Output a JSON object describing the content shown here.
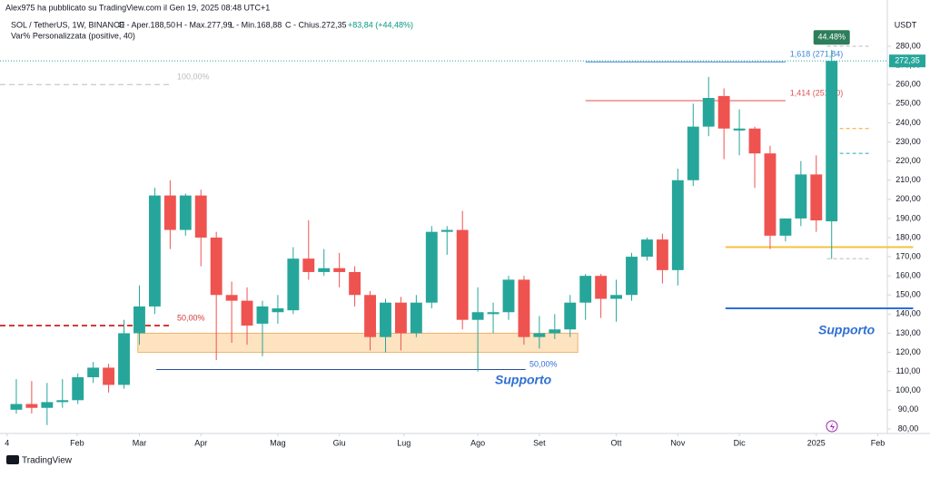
{
  "header": {
    "publisher": "Alex975 ha pubblicato su TradingView.com il Gen 19, 2025 08:48 UTC+1",
    "symbol": "SOL / TetherUS, 1W, BINANCE",
    "ohlc": [
      "O - Aper.188,50",
      "H - Max.277,99",
      "L - Min.168,88",
      "C - Chius.272,35"
    ],
    "change": "+83,84 (+44,48%)",
    "indicator": "Var% Personalizzata (positive, 40)"
  },
  "chart_data": {
    "type": "candlestick",
    "currency": "USDT",
    "up_color": "#26a69a",
    "down_color": "#ef5350",
    "categories": [
      null,
      null,
      null,
      null,
      null,
      null,
      null,
      null,
      null,
      null,
      null,
      null,
      null,
      null,
      null,
      null,
      null,
      null,
      null,
      null,
      null,
      null,
      null,
      null,
      null,
      null,
      null,
      null,
      null,
      null,
      null,
      null,
      null,
      null,
      null,
      null,
      null,
      null,
      null,
      null,
      null,
      null,
      null,
      null,
      null,
      null,
      null,
      null,
      null,
      null,
      null,
      null,
      null,
      null
    ],
    "open": [
      90,
      93,
      91,
      94,
      95,
      107,
      112,
      103,
      130,
      144,
      202,
      184,
      202,
      180,
      150,
      147,
      135,
      141,
      142,
      169,
      162,
      164,
      162,
      150,
      128,
      146,
      130,
      146,
      183,
      184,
      137,
      140,
      141,
      158,
      128,
      130,
      132,
      146,
      160,
      148,
      150,
      170,
      179,
      163,
      210,
      238,
      254,
      236,
      237,
      224,
      181,
      190,
      213,
      188.5
    ],
    "high": [
      106,
      105,
      104,
      106,
      109,
      115,
      114,
      137,
      155,
      206,
      210,
      203,
      205,
      183,
      157,
      154,
      147,
      150,
      175,
      189,
      174,
      172,
      165,
      152,
      148,
      149,
      150,
      186,
      186,
      194,
      154,
      146,
      160,
      160,
      139,
      140,
      150,
      161,
      161,
      158,
      172,
      180,
      182,
      216,
      250,
      264,
      258,
      247,
      238,
      228,
      190,
      220,
      223,
      277.99
    ],
    "low": [
      88,
      88,
      82,
      91,
      93,
      104,
      99,
      101,
      124,
      140,
      174,
      181,
      165,
      116,
      125,
      124,
      118,
      135,
      140,
      158,
      160,
      154,
      144,
      121,
      120,
      121,
      128,
      143,
      171,
      132,
      110,
      130,
      137,
      124,
      122,
      127,
      128,
      137,
      138,
      136,
      147,
      168,
      156,
      155,
      207,
      233,
      221,
      223,
      206,
      174,
      178,
      186,
      183,
      168.88
    ],
    "close": [
      93,
      91,
      94,
      95,
      107,
      112,
      103,
      130,
      144,
      202,
      184,
      202,
      180,
      150,
      147,
      134,
      144,
      143,
      169,
      162,
      164,
      162,
      150,
      128,
      146,
      130,
      146,
      183,
      184,
      137,
      141,
      141,
      158,
      128,
      130,
      132,
      146,
      160,
      148,
      150,
      170,
      179,
      163,
      210,
      238,
      253,
      237,
      237,
      224,
      181,
      190,
      213,
      189,
      272.35
    ],
    "xlim": [
      -1.06,
      56.5
    ],
    "ylim": [
      77.6,
      304.2
    ],
    "xticks": [
      {
        "value": -0.6,
        "label": "4"
      },
      {
        "value": 3.95,
        "label": "Feb"
      },
      {
        "value": 8,
        "label": "Mar"
      },
      {
        "value": 12,
        "label": "Apr"
      },
      {
        "value": 17,
        "label": "Mag"
      },
      {
        "value": 21,
        "label": "Giu"
      },
      {
        "value": 25.2,
        "label": "Lug"
      },
      {
        "value": 30,
        "label": "Ago"
      },
      {
        "value": 34,
        "label": "Set"
      },
      {
        "value": 39,
        "label": "Ott"
      },
      {
        "value": 43,
        "label": "Nov"
      },
      {
        "value": 47,
        "label": "Dic"
      },
      {
        "value": 52,
        "label": "2025"
      },
      {
        "value": 56,
        "label": "Feb"
      }
    ],
    "yticks": [
      {
        "value": 80,
        "label": "80,00"
      },
      {
        "value": 90,
        "label": "90,00"
      },
      {
        "value": 100,
        "label": "100,00"
      },
      {
        "value": 110,
        "label": "110,00"
      },
      {
        "value": 120,
        "label": "120,00"
      },
      {
        "value": 130,
        "label": "130,00"
      },
      {
        "value": 140,
        "label": "140,00"
      },
      {
        "value": 150,
        "label": "150,00"
      },
      {
        "value": 160,
        "label": "160,00"
      },
      {
        "value": 170,
        "label": "170,00"
      },
      {
        "value": 180,
        "label": "180,00"
      },
      {
        "value": 190,
        "label": "190,00"
      },
      {
        "value": 200,
        "label": "200,00"
      },
      {
        "value": 210,
        "label": "210,00"
      },
      {
        "value": 220,
        "label": "220,00"
      },
      {
        "value": 230,
        "label": "230,00"
      },
      {
        "value": 240,
        "label": "240,00"
      },
      {
        "value": 250,
        "label": "250,00"
      },
      {
        "value": 260,
        "label": "260,00"
      },
      {
        "value": 270,
        "label": "270,00"
      },
      {
        "value": 280,
        "label": "280,00"
      }
    ],
    "last_price": {
      "value": 272.35,
      "label": "272,35"
    },
    "change_tag": "44.48%",
    "zones": [
      {
        "y": [
          120,
          130
        ],
        "x": [
          7.9,
          36.5
        ],
        "color": "#fde3c0"
      }
    ],
    "levels": [
      {
        "y": 111,
        "x": [
          9.1,
          33.1
        ],
        "color": "#2a4b9b",
        "dash": ""
      },
      {
        "y": 143,
        "x": [
          46.1,
          58.3
        ],
        "color": "#2f6fd6",
        "dash": ""
      },
      {
        "y": 175,
        "x": [
          46.1,
          58.3
        ],
        "color": "#f5c242",
        "dash": ""
      },
      {
        "y": 134,
        "x": [
          -1.06,
          10.1
        ],
        "color": "#d43a3a",
        "dash": "6 4",
        "label": "50,00%"
      },
      {
        "y": 260,
        "x": [
          -1.06,
          10.1
        ],
        "color": "#bbbbbb",
        "dash": "6 4",
        "label": "100,00%"
      },
      {
        "y": 271.84,
        "x": [
          37,
          50
        ],
        "color": "#3f86d6",
        "dash": "",
        "label": "1,618 (271,84)"
      },
      {
        "y": 251.6,
        "x": [
          37,
          50
        ],
        "color": "#e05252",
        "dash": "",
        "label": "1,414 (251,60)"
      },
      {
        "y": 237,
        "x": [
          52.7,
          55.6
        ],
        "color": "#f5a623",
        "dash": "4 3"
      },
      {
        "y": 224,
        "x": [
          52.7,
          55.6
        ],
        "color": "#26a6c0",
        "dash": "4 3"
      },
      {
        "y": 280,
        "x": [
          52.7,
          55.6
        ],
        "color": "#bbbbbb",
        "dash": "4 3"
      },
      {
        "y": 169,
        "x": [
          52.7,
          55.6
        ],
        "color": "#bbbbbb",
        "dash": "4 3"
      }
    ],
    "annotations": [
      "Supporto",
      "Supporto",
      "50,00%"
    ]
  },
  "footer": "TradingView"
}
